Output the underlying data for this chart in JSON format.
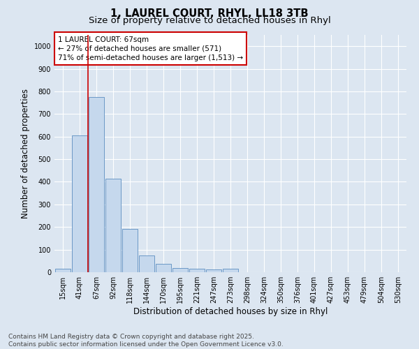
{
  "title_line1": "1, LAUREL COURT, RHYL, LL18 3TB",
  "title_line2": "Size of property relative to detached houses in Rhyl",
  "xlabel": "Distribution of detached houses by size in Rhyl",
  "ylabel": "Number of detached properties",
  "categories": [
    "15sqm",
    "41sqm",
    "67sqm",
    "92sqm",
    "118sqm",
    "144sqm",
    "170sqm",
    "195sqm",
    "221sqm",
    "247sqm",
    "273sqm",
    "298sqm",
    "324sqm",
    "350sqm",
    "376sqm",
    "401sqm",
    "427sqm",
    "453sqm",
    "479sqm",
    "504sqm",
    "530sqm"
  ],
  "values": [
    15,
    605,
    775,
    415,
    190,
    75,
    37,
    20,
    15,
    12,
    14,
    0,
    0,
    0,
    0,
    0,
    0,
    0,
    0,
    0,
    0
  ],
  "bar_color": "#c5d8ed",
  "bar_edge_color": "#5b8dc0",
  "background_color": "#dce6f1",
  "plot_bg_color": "#dce6f1",
  "grid_color": "#ffffff",
  "annotation_text": "1 LAUREL COURT: 67sqm\n← 27% of detached houses are smaller (571)\n71% of semi-detached houses are larger (1,513) →",
  "annotation_box_edge_color": "#cc0000",
  "vline_x_index": 2,
  "vline_color": "#cc0000",
  "ylim": [
    0,
    1050
  ],
  "yticks": [
    0,
    100,
    200,
    300,
    400,
    500,
    600,
    700,
    800,
    900,
    1000
  ],
  "footer_line1": "Contains HM Land Registry data © Crown copyright and database right 2025.",
  "footer_line2": "Contains public sector information licensed under the Open Government Licence v3.0.",
  "title_fontsize": 10.5,
  "subtitle_fontsize": 9.5,
  "axis_label_fontsize": 8.5,
  "tick_fontsize": 7,
  "annotation_fontsize": 7.5,
  "footer_fontsize": 6.5
}
